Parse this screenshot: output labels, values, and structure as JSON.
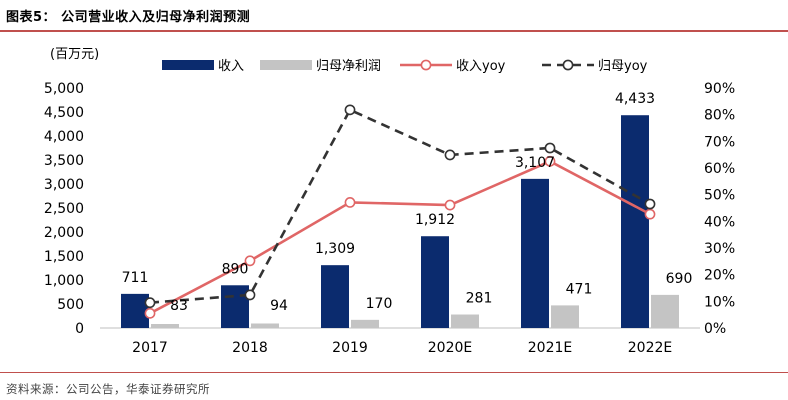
{
  "figure": {
    "title": "图表5：  公司营业收入及归母净利润预测",
    "source": "资料来源：公司公告，华泰证券研究所"
  },
  "chart_data": {
    "type": "bar",
    "unit_label": "(百万元)",
    "categories": [
      "2017",
      "2018",
      "2019",
      "2020E",
      "2021E",
      "2022E"
    ],
    "series": [
      {
        "name": "收入",
        "kind": "bar",
        "axis": "left",
        "color": "#0b2b6e",
        "values": [
          711,
          890,
          1309,
          1912,
          3107,
          4433
        ]
      },
      {
        "name": "归母净利润",
        "kind": "bar",
        "axis": "left",
        "color": "#c4c4c4",
        "values": [
          83,
          94,
          170,
          281,
          471,
          690
        ]
      },
      {
        "name": "收入yoy",
        "kind": "line",
        "style": "solid",
        "axis": "right",
        "color": "#e06666",
        "values": [
          5.5,
          25.2,
          47.1,
          46.1,
          62.5,
          42.7
        ]
      },
      {
        "name": "归母yoy",
        "kind": "line",
        "style": "dashed",
        "axis": "right",
        "color": "#333333",
        "values": [
          9.5,
          12.4,
          81.8,
          64.9,
          67.5,
          46.5
        ]
      }
    ],
    "bar_labels": {
      "收入": [
        "711",
        "890",
        "1,309",
        "1,912",
        "3,107",
        "4,433"
      ],
      "归母净利润": [
        "83",
        "94",
        "170",
        "281",
        "471",
        "690"
      ]
    },
    "y_left": {
      "min": 0,
      "max": 5000,
      "step": 500,
      "tick_labels": [
        "0",
        "500",
        "1,000",
        "1,500",
        "2,000",
        "2,500",
        "3,000",
        "3,500",
        "4,000",
        "4,500",
        "5,000"
      ]
    },
    "y_right": {
      "min": 0,
      "max": 90,
      "step": 10,
      "tick_labels": [
        "0%",
        "10%",
        "20%",
        "30%",
        "40%",
        "50%",
        "60%",
        "70%",
        "80%",
        "90%"
      ]
    },
    "grid": false,
    "legend_position": "top"
  }
}
